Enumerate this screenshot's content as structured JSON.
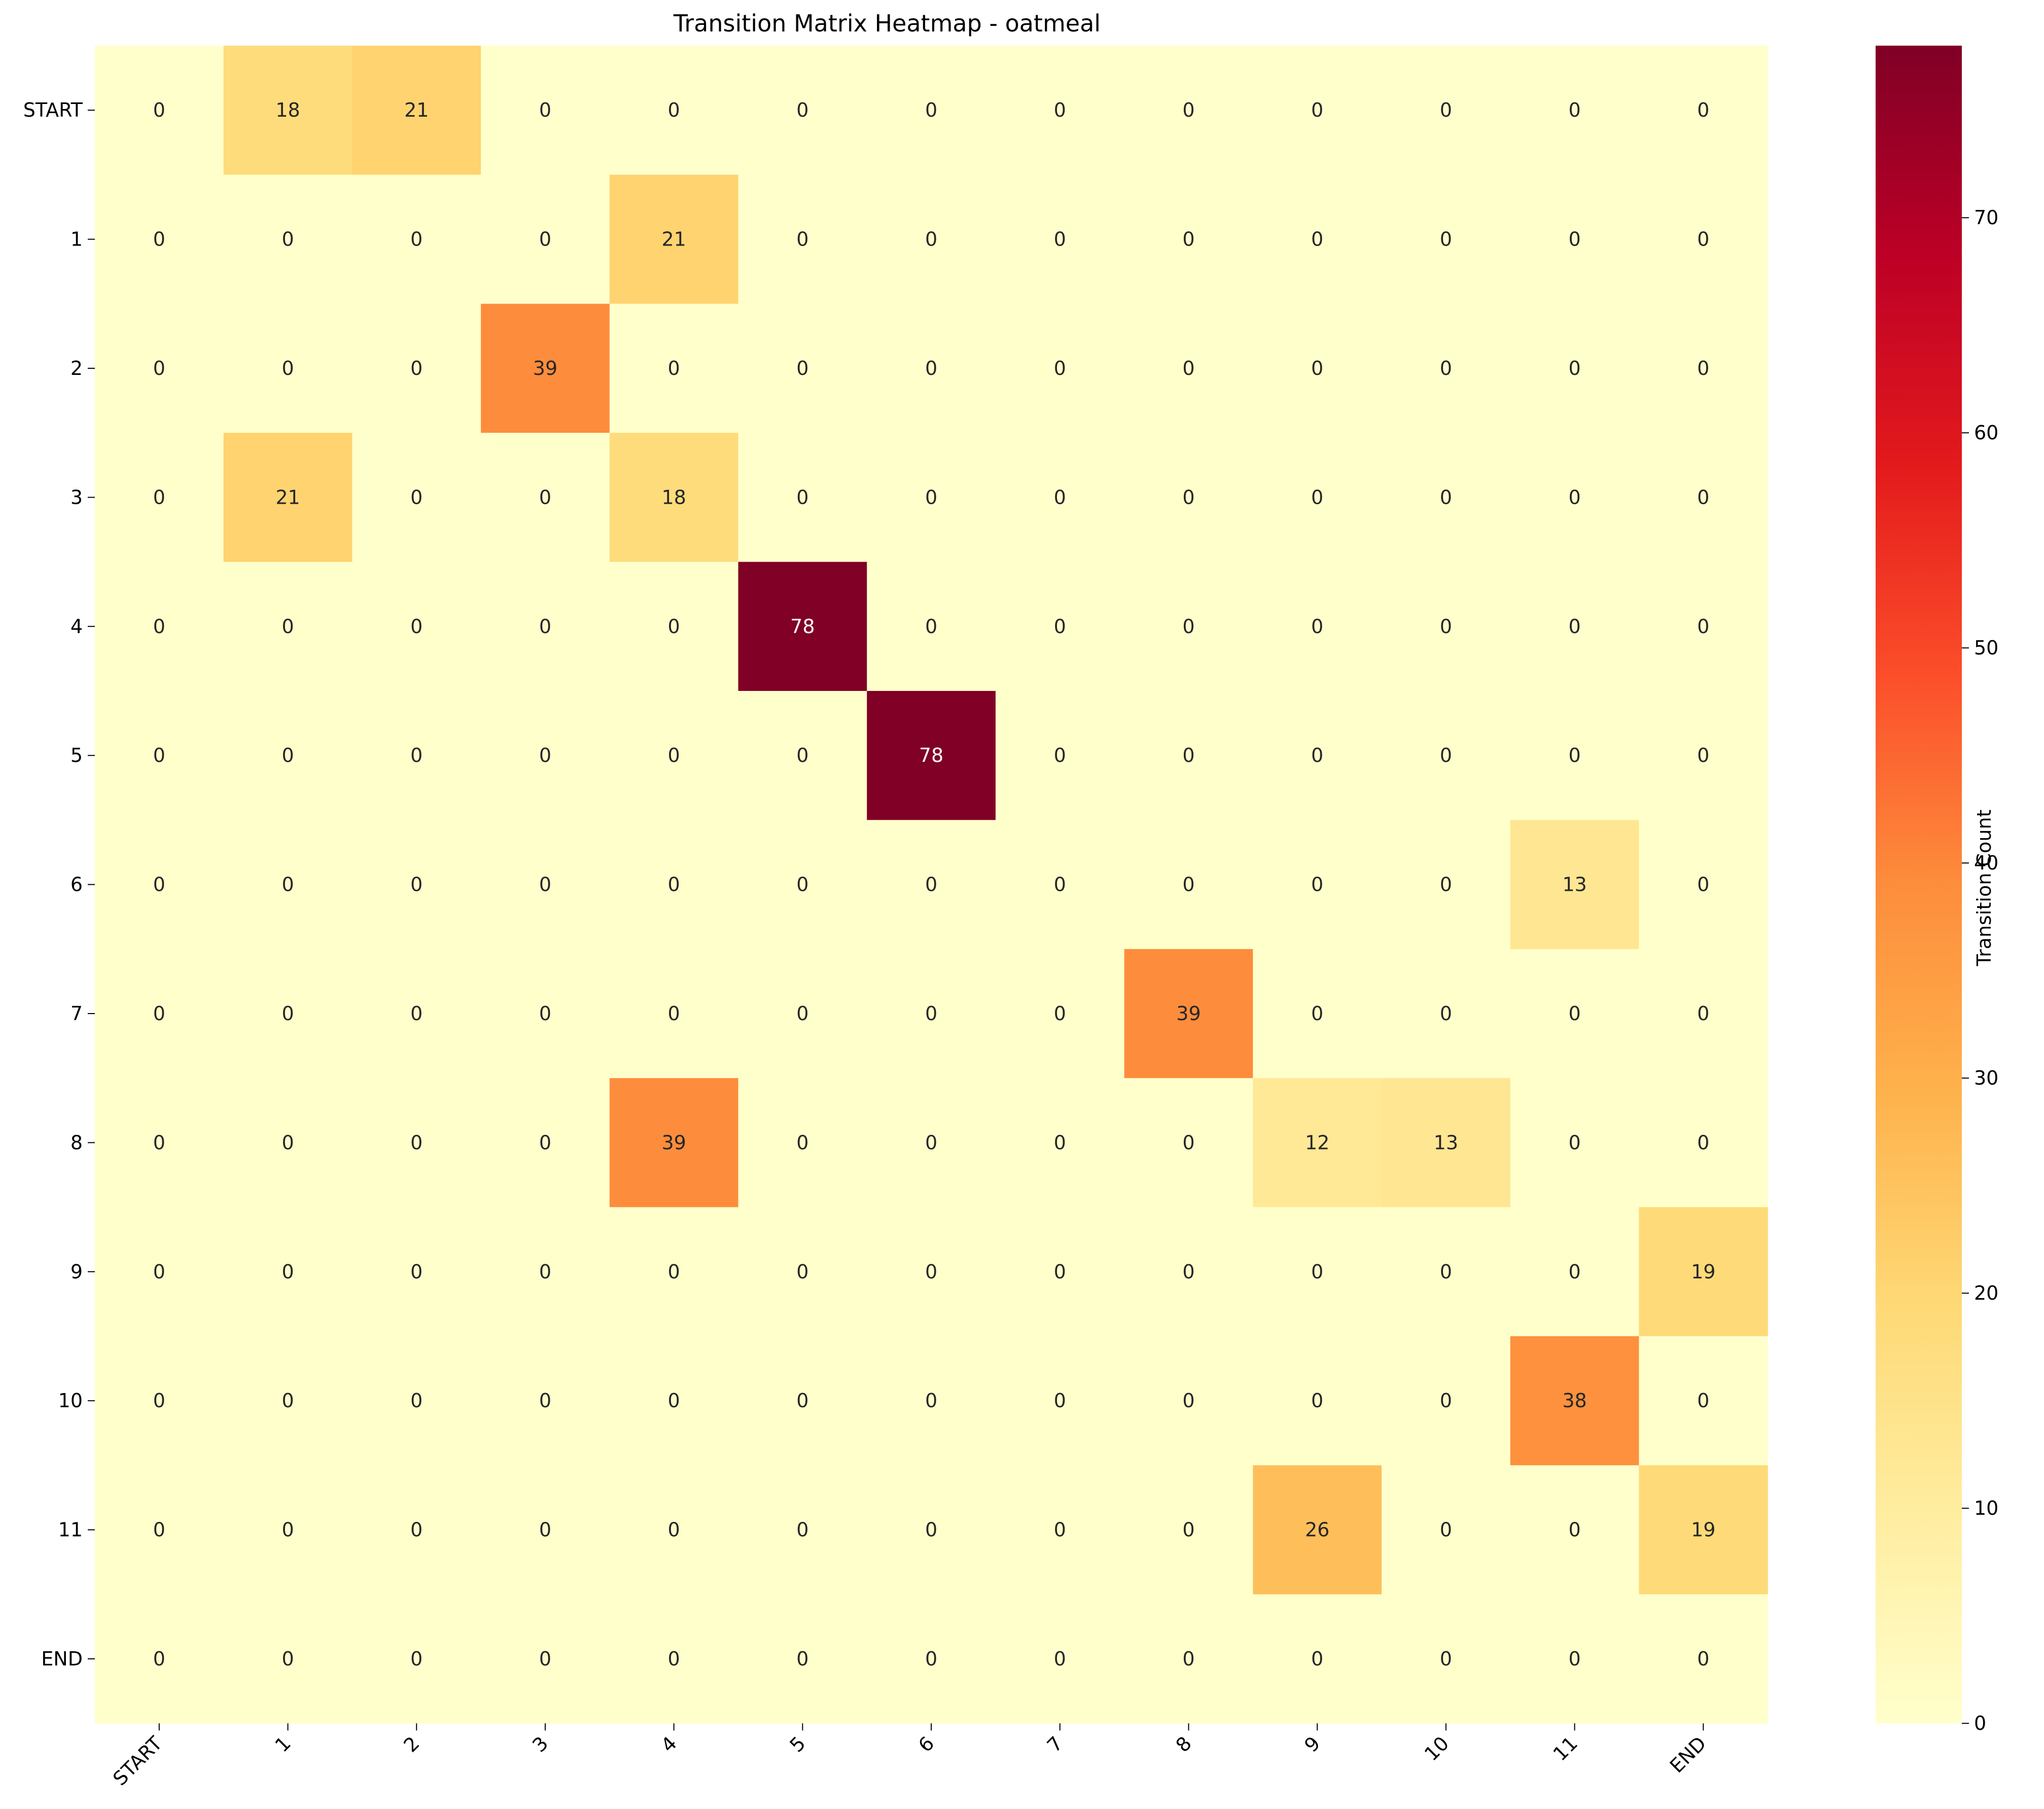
{
  "chart_data": {
    "type": "heatmap",
    "title": "Transition Matrix Heatmap - oatmeal",
    "row_labels": [
      "START",
      "1",
      "2",
      "3",
      "4",
      "5",
      "6",
      "7",
      "8",
      "9",
      "10",
      "11",
      "END"
    ],
    "col_labels": [
      "START",
      "1",
      "2",
      "3",
      "4",
      "5",
      "6",
      "7",
      "8",
      "9",
      "10",
      "11",
      "END"
    ],
    "values": [
      [
        0,
        18,
        21,
        0,
        0,
        0,
        0,
        0,
        0,
        0,
        0,
        0,
        0
      ],
      [
        0,
        0,
        0,
        0,
        21,
        0,
        0,
        0,
        0,
        0,
        0,
        0,
        0
      ],
      [
        0,
        0,
        0,
        39,
        0,
        0,
        0,
        0,
        0,
        0,
        0,
        0,
        0
      ],
      [
        0,
        21,
        0,
        0,
        18,
        0,
        0,
        0,
        0,
        0,
        0,
        0,
        0
      ],
      [
        0,
        0,
        0,
        0,
        0,
        78,
        0,
        0,
        0,
        0,
        0,
        0,
        0
      ],
      [
        0,
        0,
        0,
        0,
        0,
        0,
        78,
        0,
        0,
        0,
        0,
        0,
        0
      ],
      [
        0,
        0,
        0,
        0,
        0,
        0,
        0,
        0,
        0,
        0,
        0,
        13,
        0
      ],
      [
        0,
        0,
        0,
        0,
        0,
        0,
        0,
        0,
        39,
        0,
        0,
        0,
        0
      ],
      [
        0,
        0,
        0,
        0,
        39,
        0,
        0,
        0,
        0,
        12,
        13,
        0,
        0
      ],
      [
        0,
        0,
        0,
        0,
        0,
        0,
        0,
        0,
        0,
        0,
        0,
        0,
        19
      ],
      [
        0,
        0,
        0,
        0,
        0,
        0,
        0,
        0,
        0,
        0,
        0,
        38,
        0
      ],
      [
        0,
        0,
        0,
        0,
        0,
        0,
        0,
        0,
        0,
        26,
        0,
        0,
        19
      ],
      [
        0,
        0,
        0,
        0,
        0,
        0,
        0,
        0,
        0,
        0,
        0,
        0,
        0
      ]
    ],
    "colorbar": {
      "label": "Transition Count",
      "range": [
        0,
        78
      ],
      "ticks": [
        0,
        10,
        20,
        30,
        40,
        50,
        60,
        70
      ],
      "colormap": "YlOrRd",
      "colors": [
        "#ffffcc",
        "#ffeda0",
        "#fed976",
        "#feb24c",
        "#fd8d3c",
        "#fc4e2a",
        "#e31a1c",
        "#bd0026",
        "#800026"
      ]
    },
    "annotated": true
  }
}
